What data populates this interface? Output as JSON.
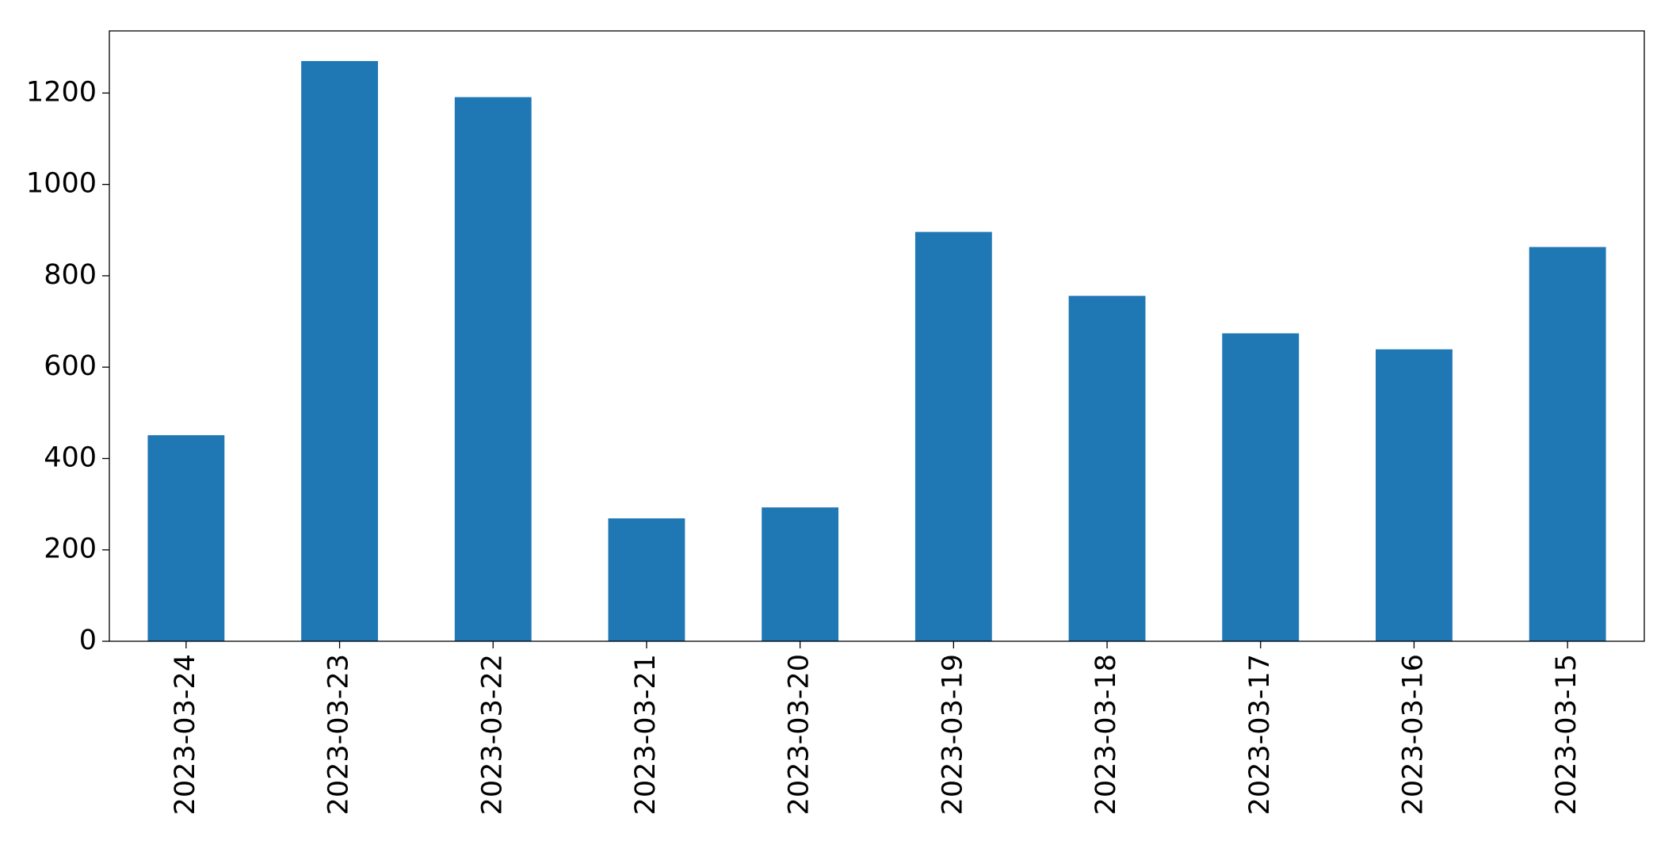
{
  "chart_data": {
    "type": "bar",
    "categories": [
      "2023-03-24",
      "2023-03-23",
      "2023-03-22",
      "2023-03-21",
      "2023-03-20",
      "2023-03-19",
      "2023-03-18",
      "2023-03-17",
      "2023-03-16",
      "2023-03-15"
    ],
    "values": [
      451,
      1270,
      1191,
      269,
      293,
      896,
      756,
      674,
      639,
      863
    ],
    "color": "#1f77b4",
    "ylim": [
      0,
      1336
    ],
    "yticks": [
      0,
      200,
      400,
      600,
      800,
      1000,
      1200
    ],
    "grid": false
  }
}
